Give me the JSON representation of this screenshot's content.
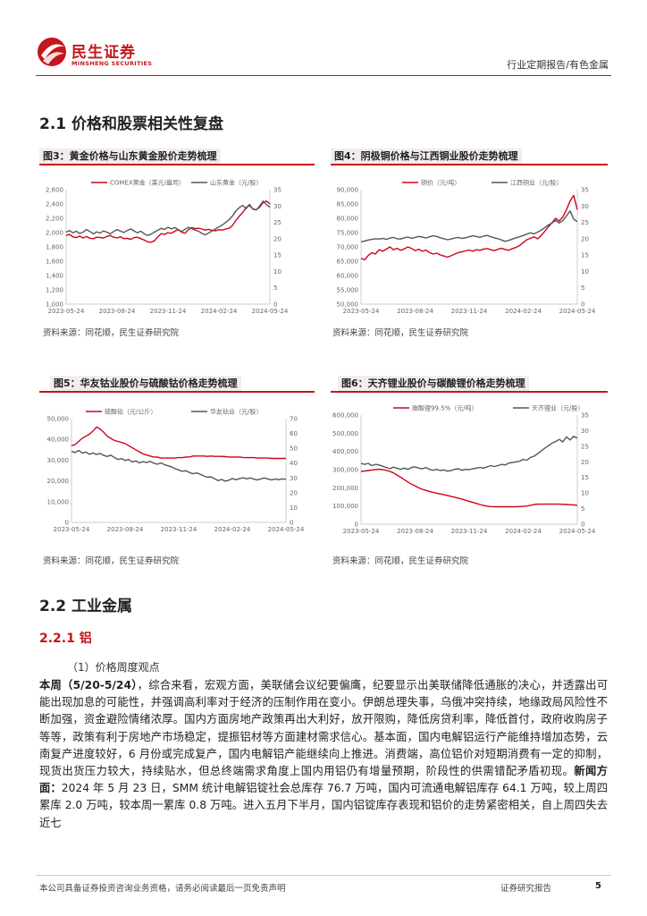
{
  "header": {
    "brand_cn": "民生证券",
    "brand_en": "MINSHENG SECURITIES",
    "report_type": "行业定期报告/有色金属",
    "brand_color": "#c4161c"
  },
  "section_2_1": {
    "title": "2.1 价格和股票相关性复盘"
  },
  "figures": [
    {
      "title": "图3：黄金价格与山东黄金股价走势梳理",
      "source": "资料来源：同花顺，民生证券研究院"
    },
    {
      "title": "图4：阴极铜价格与江西铜业股价走势梳理",
      "source": "资料来源：同花顺，民生证券研究院"
    },
    {
      "title": "图5：华友钴业股价与硫酸钴价格走势梳理",
      "source": "资料来源：同花顺，民生证券研究院"
    },
    {
      "title": "图6：天齐锂业股价与碳酸锂价格走势梳理",
      "source": "资料来源：同花顺，民生证券研究院"
    }
  ],
  "chart_data": [
    {
      "type": "line",
      "x_ticks": [
        "2023-05-24",
        "2023-08-24",
        "2023-11-24",
        "2024-02-24",
        "2024-05-24"
      ],
      "left_axis": {
        "ylim": [
          1000,
          2600
        ],
        "ticks": [
          "2,600",
          "2,400",
          "2,200",
          "2,000",
          "1,800",
          "1,600",
          "1,400",
          "1,200",
          "1,000"
        ]
      },
      "right_axis": {
        "ylim": [
          0,
          35
        ],
        "ticks": [
          "35",
          "30",
          "25",
          "20",
          "15",
          "10",
          "5",
          "0"
        ]
      },
      "series": [
        {
          "name": "COMEX黄金（美元/盎司）",
          "axis": "left",
          "color": "#d0021b",
          "values": [
            1960,
            1975,
            1940,
            1930,
            1950,
            1925,
            1945,
            1920,
            1915,
            1935,
            1930,
            1925,
            1945,
            1960,
            1935,
            1925,
            1940,
            1915,
            1920,
            1905,
            1930,
            1935,
            1915,
            1895,
            1870,
            1865,
            1885,
            1940,
            1985,
            1975,
            2000,
            1990,
            2020,
            2040,
            2005,
            1990,
            2040,
            2070,
            2055,
            2060,
            2050,
            2035,
            2045,
            2030,
            2025,
            2040,
            2035,
            2050,
            2060,
            2100,
            2170,
            2230,
            2280,
            2350,
            2380,
            2330,
            2320,
            2355,
            2420,
            2440,
            2400
          ]
        },
        {
          "name": "山东黄金（元/股）",
          "axis": "right",
          "color": "#555555",
          "values": [
            22.0,
            22.5,
            21.8,
            22.3,
            21.6,
            22.0,
            22.8,
            22.2,
            21.5,
            22.1,
            21.7,
            22.4,
            22.0,
            21.5,
            22.2,
            22.8,
            22.3,
            21.9,
            22.5,
            23.0,
            22.4,
            21.8,
            22.3,
            21.5,
            21.0,
            21.4,
            22.0,
            22.6,
            23.2,
            22.8,
            23.5,
            23.0,
            23.4,
            22.8,
            22.2,
            22.9,
            23.5,
            23.1,
            22.6,
            22.3,
            21.6,
            21.2,
            21.8,
            22.4,
            23.0,
            23.6,
            24.2,
            25.0,
            25.8,
            27.0,
            28.5,
            29.5,
            30.2,
            29.2,
            30.5,
            29.0,
            28.8,
            30.0,
            31.5,
            30.4,
            29.6
          ]
        }
      ]
    },
    {
      "type": "line",
      "x_ticks": [
        "2023-05-24",
        "2023-08-24",
        "2023-11-24",
        "2024-02-24",
        "2024-05-24"
      ],
      "left_axis": {
        "ylim": [
          50000,
          90000
        ],
        "ticks": [
          "90,000",
          "85,000",
          "80,000",
          "75,000",
          "70,000",
          "65,000",
          "60,000",
          "55,000",
          "50,000"
        ]
      },
      "right_axis": {
        "ylim": [
          0,
          35
        ],
        "ticks": [
          "35",
          "30",
          "25",
          "20",
          "15",
          "10",
          "5",
          "0"
        ]
      },
      "series": [
        {
          "name": "铜价（元/吨）",
          "axis": "left",
          "color": "#d0021b",
          "values": [
            66000,
            65500,
            67000,
            68000,
            67500,
            69000,
            68500,
            69200,
            70000,
            69000,
            69500,
            68800,
            69300,
            70000,
            69500,
            68700,
            69200,
            68500,
            68900,
            68000,
            67500,
            67800,
            67200,
            66800,
            66400,
            66900,
            67500,
            68000,
            68300,
            68600,
            68900,
            68500,
            69000,
            68800,
            69200,
            69400,
            69000,
            68700,
            69200,
            69500,
            69100,
            68800,
            69400,
            69800,
            70500,
            71500,
            72500,
            73000,
            73500,
            72800,
            74000,
            75500,
            77000,
            78500,
            80000,
            79000,
            80500,
            83000,
            86000,
            88000,
            83000
          ]
        },
        {
          "name": "江西铜业（元/股）",
          "axis": "right",
          "color": "#555555",
          "values": [
            19.0,
            19.3,
            19.6,
            19.8,
            20.0,
            19.9,
            20.1,
            19.8,
            20.2,
            20.4,
            20.0,
            19.9,
            20.3,
            20.5,
            20.1,
            20.4,
            20.7,
            20.5,
            20.2,
            20.6,
            20.9,
            20.7,
            20.3,
            20.0,
            19.7,
            19.9,
            20.2,
            20.4,
            20.1,
            20.3,
            20.6,
            20.9,
            20.7,
            20.4,
            20.8,
            21.0,
            20.6,
            20.3,
            20.0,
            19.6,
            19.2,
            19.5,
            19.9,
            20.3,
            20.6,
            21.0,
            21.4,
            21.8,
            21.5,
            22.0,
            22.6,
            23.4,
            24.2,
            24.8,
            25.6,
            24.8,
            25.5,
            27.0,
            28.5,
            26.0,
            25.2
          ]
        }
      ]
    },
    {
      "type": "line",
      "x_ticks": [
        "2023-05-24",
        "2023-08-24",
        "2023-11-24",
        "2024-02-24",
        "2024-05-24"
      ],
      "left_axis": {
        "ylim": [
          0,
          50000
        ],
        "ticks": [
          "50,000",
          "40,000",
          "30,000",
          "20,000",
          "10,000",
          "0"
        ]
      },
      "right_axis": {
        "ylim": [
          0,
          70
        ],
        "ticks": [
          "70",
          "60",
          "50",
          "40",
          "30",
          "20",
          "10",
          "0"
        ]
      },
      "series": [
        {
          "name": "硫酸钴（元/公斤）",
          "axis": "left",
          "color": "#d0021b",
          "values": [
            37000,
            37500,
            39000,
            40500,
            41500,
            42500,
            44000,
            46000,
            45000,
            43500,
            41500,
            40500,
            39500,
            39000,
            38500,
            38000,
            37000,
            36000,
            35000,
            34000,
            33000,
            32500,
            32000,
            31500,
            31500,
            31000,
            31000,
            31000,
            31000,
            31000,
            31200,
            31200,
            31500,
            31500,
            32000,
            32000,
            32000,
            32000,
            31800,
            32000,
            31800,
            31800,
            31800,
            31700,
            31500,
            31500,
            31500,
            31500,
            31300,
            31200,
            31200,
            31200,
            31000,
            31000,
            31000,
            31000,
            30800,
            30800,
            30800,
            30800,
            30800
          ]
        },
        {
          "name": "华友钴业（元/股）",
          "axis": "right",
          "color": "#555555",
          "values": [
            48.0,
            47.2,
            48.5,
            46.8,
            47.5,
            46.0,
            46.8,
            45.8,
            46.5,
            45.2,
            44.5,
            45.4,
            43.8,
            42.5,
            43.0,
            41.8,
            42.4,
            40.8,
            41.5,
            40.2,
            41.0,
            40.4,
            41.2,
            40.0,
            39.2,
            40.1,
            39.0,
            38.2,
            37.5,
            36.2,
            35.4,
            34.5,
            34.8,
            33.6,
            32.8,
            33.4,
            32.5,
            31.4,
            30.5,
            30.8,
            29.5,
            28.2,
            29.0,
            27.8,
            28.4,
            29.6,
            28.8,
            29.5,
            30.2,
            29.4,
            30.0,
            29.2,
            28.6,
            29.4,
            30.0,
            29.2,
            28.7,
            29.3,
            28.8,
            29.4,
            29.1
          ]
        }
      ]
    },
    {
      "type": "line",
      "x_ticks": [
        "2023-05-24",
        "2023-08-24",
        "2023-11-24",
        "2024-02-24",
        "2024-05-24"
      ],
      "left_axis": {
        "ylim": [
          0,
          600000
        ],
        "ticks": [
          "600,000",
          "500,000",
          "400,000",
          "300,000",
          "200,000",
          "100,000",
          "0"
        ]
      },
      "right_axis": {
        "ylim": [
          0,
          35
        ],
        "ticks": [
          "35",
          "30",
          "25",
          "20",
          "15",
          "10",
          "5",
          "0"
        ]
      },
      "series": [
        {
          "name": "碳酸锂99.5%（元/吨）",
          "axis": "left",
          "color": "#d0021b",
          "values": [
            290000,
            292000,
            295000,
            298000,
            300000,
            302000,
            300000,
            296000,
            290000,
            282000,
            270000,
            258000,
            245000,
            232000,
            220000,
            210000,
            200000,
            192000,
            186000,
            180000,
            175000,
            170000,
            166000,
            162000,
            158000,
            153000,
            148000,
            143000,
            138000,
            132000,
            126000,
            120000,
            114000,
            108000,
            103000,
            99000,
            97000,
            96000,
            96000,
            96000,
            96000,
            96000,
            96000,
            96000,
            97000,
            98000,
            100000,
            104000,
            108000,
            110000,
            110000,
            110000,
            110000,
            110000,
            110000,
            110000,
            109000,
            108000,
            107000,
            106000,
            104000
          ]
        },
        {
          "name": "天齐锂业（元/股）",
          "axis": "right",
          "color": "#555555",
          "values": [
            19.5,
            19.2,
            19.5,
            18.8,
            19.2,
            19.0,
            18.6,
            18.2,
            17.8,
            18.3,
            17.9,
            17.6,
            18.0,
            17.6,
            18.2,
            18.4,
            18.0,
            17.8,
            18.2,
            17.6,
            17.3,
            17.6,
            17.2,
            17.4,
            17.0,
            17.2,
            17.6,
            17.8,
            17.3,
            17.6,
            17.5,
            17.8,
            18.0,
            18.2,
            18.0,
            18.4,
            18.8,
            18.5,
            18.8,
            19.2,
            19.0,
            19.6,
            19.8,
            20.0,
            20.2,
            20.8,
            20.5,
            21.4,
            21.8,
            22.6,
            23.5,
            24.4,
            25.2,
            26.0,
            26.5,
            27.2,
            26.4,
            28.0,
            27.0,
            28.2,
            27.6
          ]
        }
      ]
    }
  ],
  "section_2_2": {
    "title": "2.2 工业金属",
    "subsection_title": "2.2.1 铝",
    "paragraph_label": "（1）价格周度观点",
    "body_lead": "本周（5/20-5/24）",
    "body_part1": "，综合来看，宏观方面，美联储会议纪要偏鹰，纪要显示出美联储降低通胀的决心，并透露出可能出现加息的可能性，并强调高利率对于经济的压制作用在变小。伊朗总理失事，乌俄冲突持续，地缘政局风险性不断加强，资金避险情绪浓厚。国内方面房地产政策再出大利好，放开限购，降低房贷利率，降低首付，政府收购房子等等，政策有利于房地产市场稳定，提振铝材等方面建材需求信心。基本面，国内电解铝运行产能维持增加态势，云南复产进度较好，6 月份或完成复产，国内电解铝产能继续向上推进。消费端，高位铝价对短期消费有一定的抑制，现货出货压力较大，持续贴水，但总终端需求角度上国内用铝仍有增量预期，阶段性的供需错配矛盾初现。",
    "body_news_label": "新闻方面：",
    "body_part2": "2024 年 5 月 23 日，SMM 统计电解铝锭社会总库存 76.7 万吨，国内可流通电解铝库存 64.1 万吨，较上周四累库 2.0 万吨，较本周一累库 0.8 万吨。进入五月下半月，国内铝锭库存表现和铝价的走势紧密相关，自上周四失去近七"
  },
  "footer": {
    "disclaimer": "本公司具备证券投资咨询业务资格，请务必阅读最后一页免责声明",
    "report_label": "证券研究报告",
    "page_number": "5"
  }
}
